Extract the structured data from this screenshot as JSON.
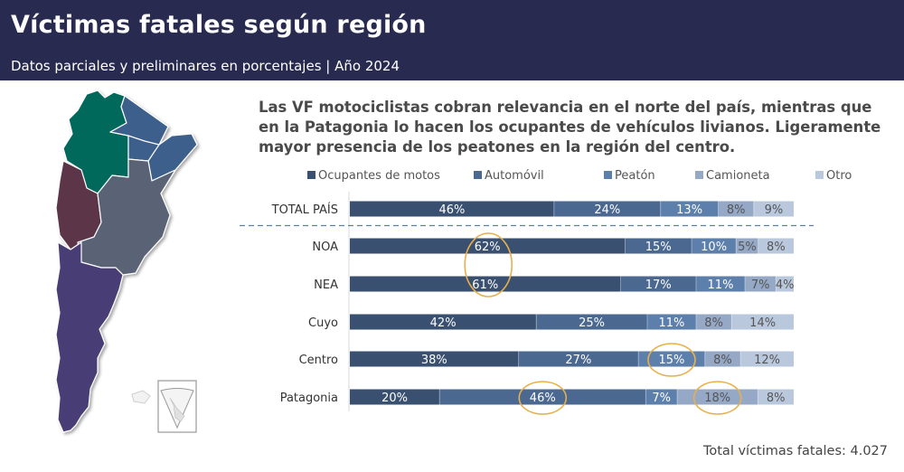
{
  "header": {
    "title": "Víctimas fatales según región",
    "subtitle": "Datos parciales y preliminares en porcentajes | Año 2024"
  },
  "headline": "Las VF motociclistas cobran relevancia en el norte del país, mientras que en la Patagonia lo hacen los ocupantes de vehículos livianos. Ligeramente mayor presencia de los peatones en la región del centro.",
  "footer": {
    "total_label": "Total víctimas fatales: 4.027"
  },
  "map": {
    "regions": [
      {
        "name": "NOA",
        "color": "#00695c"
      },
      {
        "name": "NEA",
        "color": "#3e5e8c"
      },
      {
        "name": "Cuyo",
        "color": "#5c3548"
      },
      {
        "name": "Centro",
        "color": "#5a6474"
      },
      {
        "name": "Patagonia",
        "color": "#4a3d74"
      }
    ]
  },
  "chart_data": {
    "type": "bar",
    "orientation": "horizontal",
    "stacked": true,
    "title": "",
    "xlabel": "",
    "ylabel": "",
    "xlim": [
      0,
      100
    ],
    "legend_position": "top",
    "categories": [
      "TOTAL PAÍS",
      "NOA",
      "NEA",
      "Cuyo",
      "Centro",
      "Patagonia"
    ],
    "series": [
      {
        "name": "Ocupantes de motos",
        "color": "#3a5070",
        "values": [
          46,
          62,
          61,
          42,
          38,
          20
        ],
        "labels": [
          "46%",
          "62%",
          "61%",
          "42%",
          "38%",
          "20%"
        ]
      },
      {
        "name": "Automóvil",
        "color": "#4b6890",
        "values": [
          24,
          15,
          17,
          25,
          27,
          46
        ],
        "labels": [
          "24%",
          "15%",
          "17%",
          "25%",
          "27%",
          "46%"
        ]
      },
      {
        "name": "Peatón",
        "color": "#5d7fab",
        "values": [
          13,
          10,
          11,
          11,
          15,
          7
        ],
        "labels": [
          "13%",
          "10%",
          "11%",
          "11%",
          "15%",
          "7%"
        ]
      },
      {
        "name": "Camioneta",
        "color": "#95a8c6",
        "values": [
          8,
          5,
          7,
          8,
          8,
          18
        ],
        "labels": [
          "8%",
          "5%",
          "7%",
          "8%",
          "8%",
          "18%"
        ]
      },
      {
        "name": "Otro",
        "color": "#b9c8dc",
        "values": [
          9,
          8,
          4,
          14,
          12,
          8
        ],
        "labels": [
          "9%",
          "8%",
          "4%",
          "14%",
          "12%",
          "8%"
        ]
      }
    ],
    "highlights": [
      {
        "category": "NOA",
        "series": "Ocupantes de motos",
        "spans_to": "NEA"
      },
      {
        "category": "Centro",
        "series": "Peatón"
      },
      {
        "category": "Patagonia",
        "series": "Automóvil"
      },
      {
        "category": "Patagonia",
        "series": "Camioneta"
      }
    ],
    "highlight_color": "#e8b04a",
    "separator_after": "TOTAL PAÍS"
  }
}
